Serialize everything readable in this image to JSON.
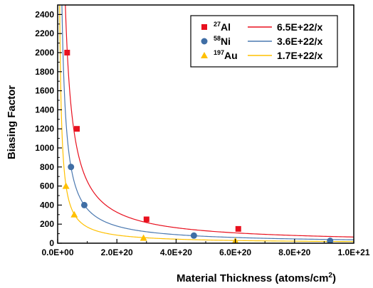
{
  "chart_data": {
    "type": "scatter",
    "title": "",
    "xlabel": "Material Thickness (atoms/cm",
    "xlabel_sup": "2",
    "xlabel_end": ")",
    "ylabel": "Biasing Factor",
    "xlim": [
      0,
      1e+21
    ],
    "ylim": [
      0,
      2500
    ],
    "x_ticks": [
      0,
      2e+20,
      4e+20,
      6e+20,
      8e+20,
      1e+21
    ],
    "x_tick_labels": [
      "0.0E+00",
      "2.0E+20",
      "4.0E+20",
      "6.0E+20",
      "8.0E+20",
      "1.0E+21"
    ],
    "y_ticks": [
      0,
      200,
      400,
      600,
      800,
      1000,
      1200,
      1400,
      1600,
      1800,
      2000,
      2200,
      2400
    ],
    "y_tick_labels": [
      "0",
      "200",
      "400",
      "600",
      "800",
      "1000",
      "1200",
      "1400",
      "1600",
      "1800",
      "2000",
      "2200",
      "2400"
    ],
    "legend_placement": "top-right",
    "grid": false,
    "series": [
      {
        "name_sup": "27",
        "name": "Al",
        "marker": "square",
        "color": "#e8101e",
        "x": [
          3.2e+19,
          6.5e+19,
          3e+20,
          6.1e+20
        ],
        "y": [
          2000,
          1200,
          250,
          150
        ],
        "fit_label": "6.5E+22/x",
        "fit_coef": 6.5e+22,
        "fit_color": "#e8101e"
      },
      {
        "name_sup": "58",
        "name": "Ni",
        "marker": "circle",
        "color": "#3f6ea5",
        "x": [
          4.5e+19,
          9e+19,
          4.6e+20,
          9.2e+20
        ],
        "y": [
          800,
          400,
          80,
          25
        ],
        "fit_label": "3.6E+22/x",
        "fit_coef": 3.6e+22,
        "fit_color": "#4a78b0"
      },
      {
        "name_sup": "197",
        "name": "Au",
        "marker": "triangle",
        "color": "#ffc000",
        "x": [
          2.8e+19,
          5.6e+19,
          2.9e+20,
          6e+20
        ],
        "y": [
          600,
          300,
          55,
          25
        ],
        "fit_label": "1.7E+22/x",
        "fit_coef": 1.7e+22,
        "fit_color": "#ffc000"
      }
    ]
  }
}
